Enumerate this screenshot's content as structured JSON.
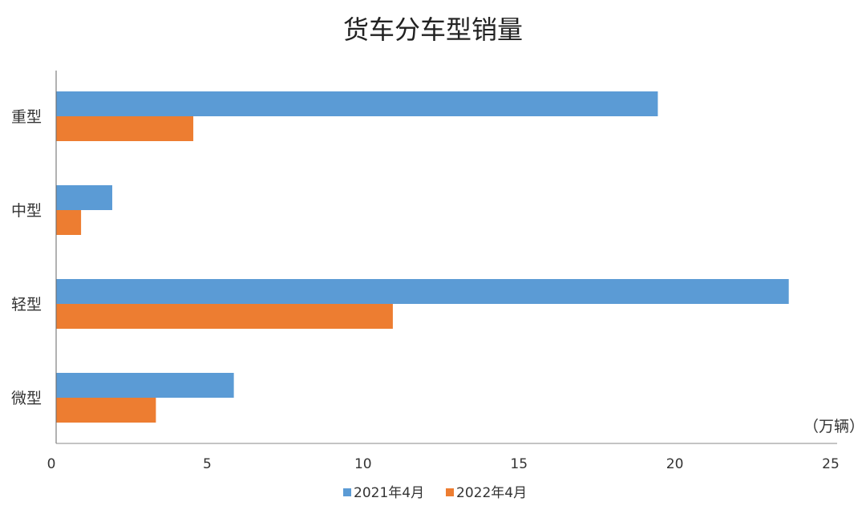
{
  "chart_data": {
    "type": "bar",
    "orientation": "horizontal",
    "title": "货车分车型销量",
    "unit_label": "（万辆）",
    "categories": [
      "重型",
      "中型",
      "轻型",
      "微型"
    ],
    "series": [
      {
        "name": "2021年4月",
        "color": "#5B9BD5",
        "values": [
          19.3,
          1.8,
          23.5,
          5.7
        ]
      },
      {
        "name": "2022年4月",
        "color": "#ED7D31",
        "values": [
          4.4,
          0.8,
          10.8,
          3.2
        ]
      }
    ],
    "xlim": [
      0,
      25
    ],
    "xticks": [
      0,
      5,
      10,
      15,
      20,
      25
    ],
    "grid": false,
    "legend_position": "bottom"
  }
}
